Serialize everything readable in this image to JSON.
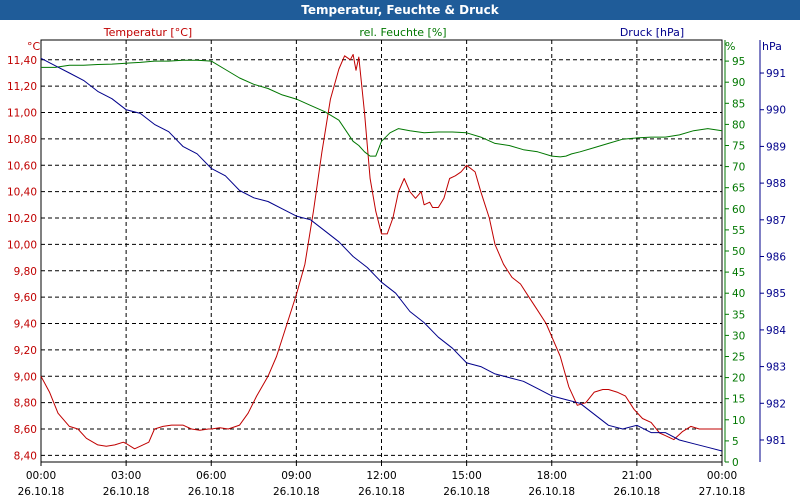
{
  "window_title": "Temperatur, Feuchte & Druck",
  "chart_data": {
    "type": "line",
    "title": "Temperatur, Feuchte & Druck",
    "x_labels": [
      {
        "time": "00:00",
        "date": "26.10.18"
      },
      {
        "time": "03:00",
        "date": "26.10.18"
      },
      {
        "time": "06:00",
        "date": "26.10.18"
      },
      {
        "time": "09:00",
        "date": "26.10.18"
      },
      {
        "time": "12:00",
        "date": "26.10.18"
      },
      {
        "time": "15:00",
        "date": "26.10.18"
      },
      {
        "time": "18:00",
        "date": "26.10.18"
      },
      {
        "time": "21:00",
        "date": "26.10.18"
      },
      {
        "time": "00:00",
        "date": "27.10.18"
      }
    ],
    "xlim": [
      0,
      24
    ],
    "axes": {
      "temperature": {
        "unit": "°C",
        "label": "Temperatur [°C]",
        "ylim": [
          8.35,
          11.55
        ],
        "ticks": [
          "8,40",
          "8,60",
          "8,80",
          "9,00",
          "9,20",
          "9,40",
          "9,60",
          "9,80",
          "10,00",
          "10,20",
          "10,40",
          "10,60",
          "10,80",
          "11,00",
          "11,20",
          "11,40"
        ],
        "color": "#c00000"
      },
      "humidity": {
        "unit": "%",
        "label": "rel. Feuchte [%]",
        "ylim": [
          0,
          100
        ],
        "ticks": [
          "0",
          "5",
          "10",
          "15",
          "20",
          "25",
          "30",
          "35",
          "40",
          "45",
          "50",
          "55",
          "60",
          "65",
          "70",
          "75",
          "80",
          "85",
          "90",
          "95"
        ],
        "color": "#007700"
      },
      "pressure": {
        "unit": "hPa",
        "label": "Druck [hPa]",
        "ylim": [
          980.4,
          991.9
        ],
        "ticks": [
          "981",
          "982",
          "983",
          "984",
          "985",
          "986",
          "987",
          "988",
          "989",
          "990",
          "991"
        ],
        "color": "#00008b"
      }
    },
    "series": [
      {
        "name": "Temperatur",
        "axis": "temperature",
        "color": "#c00000",
        "x": [
          0,
          0.3,
          0.6,
          1,
          1.3,
          1.6,
          2,
          2.3,
          2.6,
          2.9,
          3,
          3.3,
          3.5,
          3.8,
          4,
          4.3,
          4.6,
          5,
          5.3,
          5.6,
          5.9,
          6,
          6.3,
          6.6,
          7,
          7.3,
          7.6,
          8,
          8.3,
          8.6,
          9,
          9.3,
          9.6,
          9.9,
          10.2,
          10.5,
          10.7,
          10.9,
          11,
          11.1,
          11.2,
          11.4,
          11.6,
          11.8,
          12,
          12.2,
          12.4,
          12.6,
          12.8,
          13,
          13.2,
          13.4,
          13.5,
          13.7,
          13.8,
          14,
          14.2,
          14.4,
          14.6,
          14.8,
          15,
          15.3,
          15.5,
          15.8,
          16,
          16.3,
          16.6,
          16.9,
          17.2,
          17.5,
          17.8,
          18,
          18.3,
          18.6,
          18.9,
          19.2,
          19.5,
          19.8,
          20,
          20.3,
          20.6,
          20.9,
          21.2,
          21.5,
          21.8,
          22,
          22.3,
          22.6,
          22.9,
          23.2,
          23.5,
          23.8,
          24
        ],
        "values": [
          9.0,
          8.88,
          8.72,
          8.62,
          8.6,
          8.53,
          8.48,
          8.47,
          8.48,
          8.5,
          8.49,
          8.45,
          8.47,
          8.5,
          8.6,
          8.62,
          8.63,
          8.63,
          8.6,
          8.59,
          8.6,
          8.6,
          8.61,
          8.6,
          8.63,
          8.72,
          8.85,
          9.0,
          9.15,
          9.35,
          9.62,
          9.85,
          10.25,
          10.7,
          11.1,
          11.33,
          11.43,
          11.4,
          11.44,
          11.32,
          11.42,
          11.0,
          10.5,
          10.25,
          10.08,
          10.08,
          10.2,
          10.4,
          10.5,
          10.4,
          10.35,
          10.4,
          10.3,
          10.32,
          10.28,
          10.28,
          10.35,
          10.5,
          10.52,
          10.55,
          10.6,
          10.55,
          10.4,
          10.2,
          10.0,
          9.85,
          9.75,
          9.7,
          9.6,
          9.5,
          9.4,
          9.3,
          9.15,
          8.92,
          8.78,
          8.8,
          8.88,
          8.9,
          8.9,
          8.88,
          8.85,
          8.75,
          8.68,
          8.65,
          8.57,
          8.55,
          8.52,
          8.58,
          8.62,
          8.6,
          8.6,
          8.6,
          8.6
        ]
      },
      {
        "name": "rel. Feuchte",
        "axis": "humidity",
        "color": "#007700",
        "x": [
          0,
          0.5,
          1,
          1.5,
          2,
          2.5,
          3,
          3.5,
          4,
          4.5,
          5,
          5.5,
          6,
          6.5,
          7,
          7.5,
          8,
          8.5,
          9,
          9.5,
          10,
          10.5,
          10.8,
          11,
          11.2,
          11.4,
          11.6,
          11.8,
          12,
          12.3,
          12.6,
          13,
          13.5,
          14,
          14.5,
          15,
          15.5,
          16,
          16.5,
          17,
          17.5,
          18,
          18.3,
          18.5,
          18.7,
          19,
          19.5,
          20,
          20.5,
          21,
          21.5,
          22,
          22.5,
          23,
          23.5,
          24
        ],
        "values": [
          93.5,
          93.5,
          94,
          94,
          94.2,
          94.3,
          94.5,
          94.7,
          95,
          95,
          95.2,
          95.2,
          95,
          93,
          91,
          89.5,
          88.5,
          87,
          86,
          84.5,
          83,
          81,
          78,
          76,
          75,
          73.5,
          72.5,
          72.5,
          76,
          78,
          79,
          78.5,
          78,
          78.2,
          78.2,
          78,
          77,
          75.5,
          75,
          74,
          73.5,
          72.5,
          72.3,
          72.5,
          73,
          73.5,
          74.5,
          75.5,
          76.5,
          76.8,
          77,
          77,
          77.5,
          78.5,
          79,
          78.5
        ]
      },
      {
        "name": "Druck",
        "axis": "pressure",
        "color": "#00008b",
        "x": [
          0,
          0.5,
          1,
          1.5,
          2,
          2.5,
          3,
          3.5,
          4,
          4.5,
          5,
          5.5,
          6,
          6.5,
          7,
          7.5,
          8,
          8.5,
          9,
          9.5,
          10,
          10.5,
          11,
          11.5,
          12,
          12.5,
          13,
          13.5,
          14,
          14.5,
          15,
          15.5,
          16,
          16.5,
          17,
          17.5,
          18,
          18.5,
          19,
          19.5,
          20,
          20.5,
          21,
          21.5,
          22,
          22.5,
          23,
          23.5,
          24
        ],
        "values": [
          991.4,
          991.2,
          991.0,
          990.8,
          990.5,
          990.3,
          990.0,
          989.9,
          989.6,
          989.4,
          989.0,
          988.8,
          988.4,
          988.2,
          987.8,
          987.6,
          987.5,
          987.3,
          987.1,
          987.0,
          986.7,
          986.4,
          986.0,
          985.7,
          985.3,
          985.0,
          984.5,
          984.2,
          983.8,
          983.5,
          983.1,
          983.0,
          982.8,
          982.7,
          982.6,
          982.4,
          982.2,
          982.1,
          982.0,
          981.7,
          981.4,
          981.3,
          981.4,
          981.2,
          981.2,
          981.0,
          980.9,
          980.8,
          980.7
        ]
      }
    ]
  }
}
